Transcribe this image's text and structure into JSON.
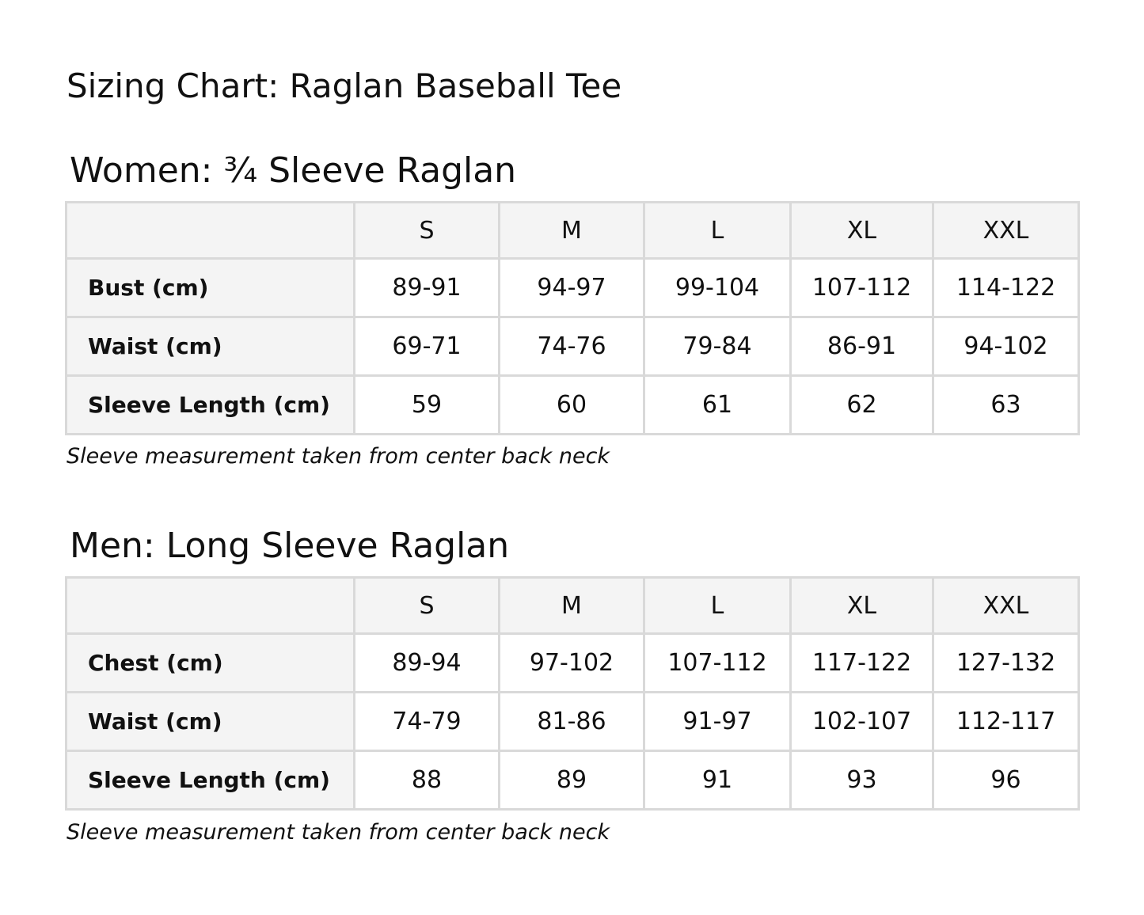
{
  "title": "Sizing Chart: Raglan Baseball Tee",
  "sections": [
    {
      "title": "Women: ¾ Sleeve Raglan",
      "sizes": [
        "S",
        "M",
        "L",
        "XL",
        "XXL"
      ],
      "rows": [
        {
          "label": "Bust (cm)",
          "values": [
            "89-91",
            "94-97",
            "99-104",
            "107-112",
            "114-122"
          ]
        },
        {
          "label": "Waist (cm)",
          "values": [
            "69-71",
            "74-76",
            "79-84",
            "86-91",
            "94-102"
          ]
        },
        {
          "label": "Sleeve Length (cm)",
          "values": [
            "59",
            "60",
            "61",
            "62",
            "63"
          ]
        }
      ],
      "note": "Sleeve measurement taken from center back neck"
    },
    {
      "title": "Men: Long Sleeve Raglan",
      "sizes": [
        "S",
        "M",
        "L",
        "XL",
        "XXL"
      ],
      "rows": [
        {
          "label": "Chest (cm)",
          "values": [
            "89-94",
            "97-102",
            "107-112",
            "117-122",
            "127-132"
          ]
        },
        {
          "label": "Waist (cm)",
          "values": [
            "74-79",
            "81-86",
            "91-97",
            "102-107",
            "112-117"
          ]
        },
        {
          "label": "Sleeve Length (cm)",
          "values": [
            "88",
            "89",
            "91",
            "93",
            "96"
          ]
        }
      ],
      "note": "Sleeve measurement taken from center back neck"
    }
  ]
}
